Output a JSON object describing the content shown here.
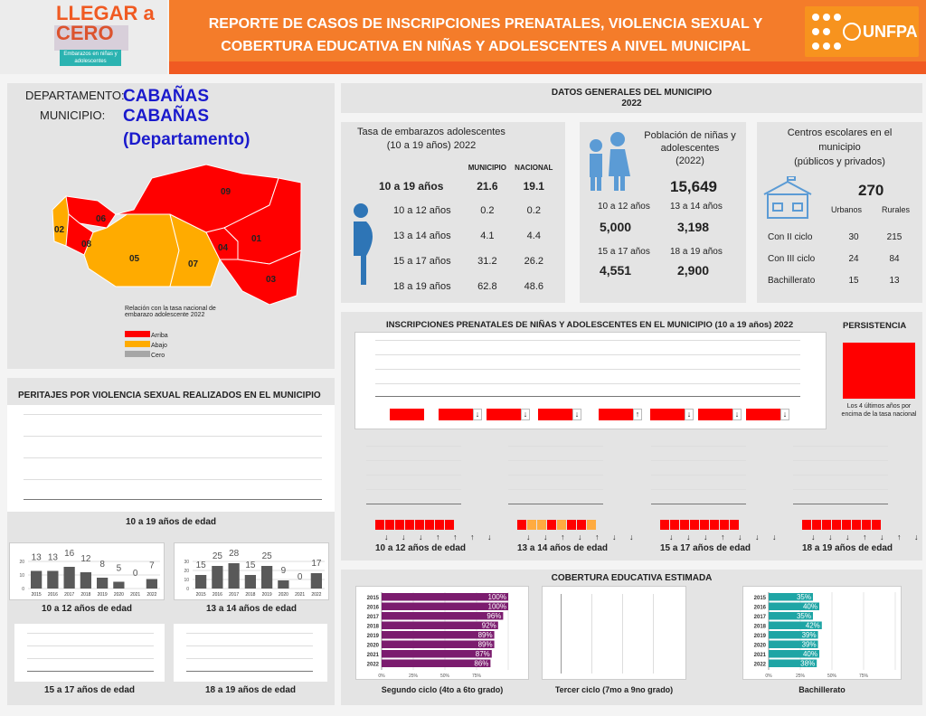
{
  "header": {
    "logo_text": "LLEGAR a CERO",
    "logo_sub": "Embarazos en niñas y adolescentes",
    "title_line1": "REPORTE DE CASOS DE INSCRIPCIONES PRENATALES, VIOLENCIA SEXUAL Y",
    "title_line2": "COBERTURA EDUCATIVA EN NIÑAS Y ADOLESCENTES A NIVEL MUNICIPAL",
    "partner_logo": "UNFPA"
  },
  "location": {
    "dept_label": "DEPARTAMENTO:",
    "dept_value": "CABAÑAS",
    "muni_label": "MUNICIPIO:",
    "muni_value": "CABAÑAS",
    "muni_value2": "(Departamento)"
  },
  "map": {
    "regions": [
      {
        "id": "02",
        "status": "Abajo"
      },
      {
        "id": "05",
        "status": "Abajo"
      },
      {
        "id": "07",
        "status": "Abajo"
      },
      {
        "id": "06",
        "status": "Arriba"
      },
      {
        "id": "08",
        "status": "Arriba"
      },
      {
        "id": "09",
        "status": "Arriba"
      },
      {
        "id": "04",
        "status": "Arriba"
      },
      {
        "id": "01",
        "status": "Arriba"
      },
      {
        "id": "03",
        "status": "Arriba"
      }
    ],
    "legend_title": "Relación con la tasa nacional de embarazo adolescente 2022",
    "legend": [
      {
        "label": "Arriba",
        "color": "#ff0000"
      },
      {
        "label": "Abajo",
        "color": "#ffab00"
      },
      {
        "label": "Cero",
        "color": "#a6a6a6"
      }
    ]
  },
  "general": {
    "title": "DATOS GENERALES DEL MUNICIPIO",
    "year": "2022"
  },
  "tasa": {
    "title1": "Tasa de embarazos adolescentes",
    "title2": "(10 a 19 años) 2022",
    "col_muni": "MUNICIPIO",
    "col_nac": "NACIONAL",
    "rows": [
      {
        "age": "10 a 19 años",
        "muni": "21.6",
        "nac": "19.1"
      },
      {
        "age": "10 a 12 años",
        "muni": "0.2",
        "nac": "0.2"
      },
      {
        "age": "13 a 14 años",
        "muni": "4.1",
        "nac": "4.4"
      },
      {
        "age": "15 a 17 años",
        "muni": "31.2",
        "nac": "26.2"
      },
      {
        "age": "18 a 19 años",
        "muni": "62.8",
        "nac": "48.6"
      }
    ]
  },
  "poblacion": {
    "title1": "Población de niñas y",
    "title2": "adolescentes",
    "title3": "(2022)",
    "total": "15,649",
    "groups": [
      {
        "age": "10 a 12 años",
        "value": "5,000"
      },
      {
        "age": "13 a 14 años",
        "value": "3,198"
      },
      {
        "age": "15 a 17 años",
        "value": "4,551"
      },
      {
        "age": "18 a 19 años",
        "value": "2,900"
      }
    ]
  },
  "centros": {
    "title1": "Centros escolares en el",
    "title2": "municipio",
    "title3": "(públicos y privados)",
    "total": "270",
    "col_urb": "Urbanos",
    "col_rur": "Rurales",
    "rows": [
      {
        "label": "Con II ciclo",
        "urb": "30",
        "rur": "215"
      },
      {
        "label": "Con III ciclo",
        "urb": "24",
        "rur": "84"
      },
      {
        "label": "Bachillerato",
        "urb": "15",
        "rur": "13"
      }
    ]
  },
  "inscripciones": {
    "title": "INSCRIPCIONES PRENATALES DE NIÑAS Y ADOLESCENTES EN EL MUNICIPIO (10 a 19 años) 2022",
    "main_trend": [
      "",
      "↓",
      "↓",
      "↓",
      "↑",
      "↓",
      "↓",
      "↓"
    ],
    "persistence_title": "PERSISTENCIA",
    "persistence_color": "#ff0000",
    "persistence_text": "Los 4 últimos años por encima de la tasa nacional",
    "groups": [
      {
        "label": "10 a 12 años de edad",
        "status": [
          "#ff0000",
          "#ff0000",
          "#ff0000",
          "#ff0000",
          "#ff0000",
          "#ff0000",
          "#ff0000",
          "#ff0000"
        ],
        "trend": "↓ ↓ ↓ ↑ ↑ ↑ ↓"
      },
      {
        "label": "13 a 14 años de edad",
        "status": [
          "#ff0000",
          "#ffab40",
          "#ffab40",
          "#ff0000",
          "#ffab40",
          "#ff0000",
          "#ff0000",
          "#ffab40"
        ],
        "trend": "↓ ↓ ↑ ↓ ↑ ↓ ↓"
      },
      {
        "label": "15 a 17 años de edad",
        "status": [
          "#ff0000",
          "#ff0000",
          "#ff0000",
          "#ff0000",
          "#ff0000",
          "#ff0000",
          "#ff0000",
          "#ff0000"
        ],
        "trend": "↓ ↓ ↓ ↑ ↓ ↓ ↓"
      },
      {
        "label": "18 a 19 años de edad",
        "status": [
          "#ff0000",
          "#ff0000",
          "#ff0000",
          "#ff0000",
          "#ff0000",
          "#ff0000",
          "#ff0000",
          "#ff0000"
        ],
        "trend": "↓ ↓ ↓ ↑ ↓ ↑ ↓"
      }
    ]
  },
  "violencia": {
    "title": "PERITAJES POR VIOLENCIA SEXUAL REALIZADOS EN EL MUNICIPIO",
    "main_label": "10 a 19 años de edad",
    "label_15_17": "15 a 17 años de edad",
    "label_18_19": "18 a 19 años de edad"
  },
  "cobertura": {
    "title": "COBERTURA EDUCATIVA ESTIMADA",
    "tercer_label": "Tercer ciclo (7mo a 9no grado)"
  },
  "chart_data": [
    {
      "id": "v1012",
      "type": "bar",
      "title": "10 a 12 años de edad",
      "categories": [
        "2015",
        "2016",
        "2017",
        "2018",
        "2019",
        "2020",
        "2021",
        "2022"
      ],
      "values": [
        13,
        13,
        16,
        12,
        8,
        5,
        0,
        7
      ],
      "ylim": [
        0,
        20
      ],
      "yticks": [
        0,
        10,
        20
      ],
      "color": "#595959"
    },
    {
      "id": "v1314",
      "type": "bar",
      "title": "13 a 14 años de edad",
      "categories": [
        "2015",
        "2016",
        "2017",
        "2018",
        "2019",
        "2020",
        "2021",
        "2022"
      ],
      "values": [
        15,
        25,
        28,
        15,
        25,
        9,
        0,
        17
      ],
      "ylim": [
        0,
        30
      ],
      "yticks": [
        0,
        10,
        20,
        30
      ],
      "color": "#595959"
    },
    {
      "id": "seg",
      "type": "bar",
      "orientation": "horizontal",
      "title": "Segundo ciclo (4to a 6to grado)",
      "categories": [
        "2015",
        "2016",
        "2017",
        "2018",
        "2019",
        "2020",
        "2021",
        "2022"
      ],
      "values": [
        100,
        100,
        96,
        92,
        89,
        89,
        87,
        86
      ],
      "xticks": [
        "0%",
        "25%",
        "50%",
        "75%"
      ],
      "xlim": [
        0,
        100
      ],
      "color": "#7b1c6e"
    },
    {
      "id": "bach",
      "type": "bar",
      "orientation": "horizontal",
      "title": "Bachillerato",
      "categories": [
        "2015",
        "2016",
        "2017",
        "2018",
        "2019",
        "2020",
        "2021",
        "2022"
      ],
      "values": [
        35,
        40,
        35,
        42,
        39,
        39,
        40,
        38
      ],
      "xticks": [
        "0%",
        "25%",
        "50%",
        "75%"
      ],
      "xlim": [
        0,
        100
      ],
      "color": "#1fa5a5"
    }
  ]
}
